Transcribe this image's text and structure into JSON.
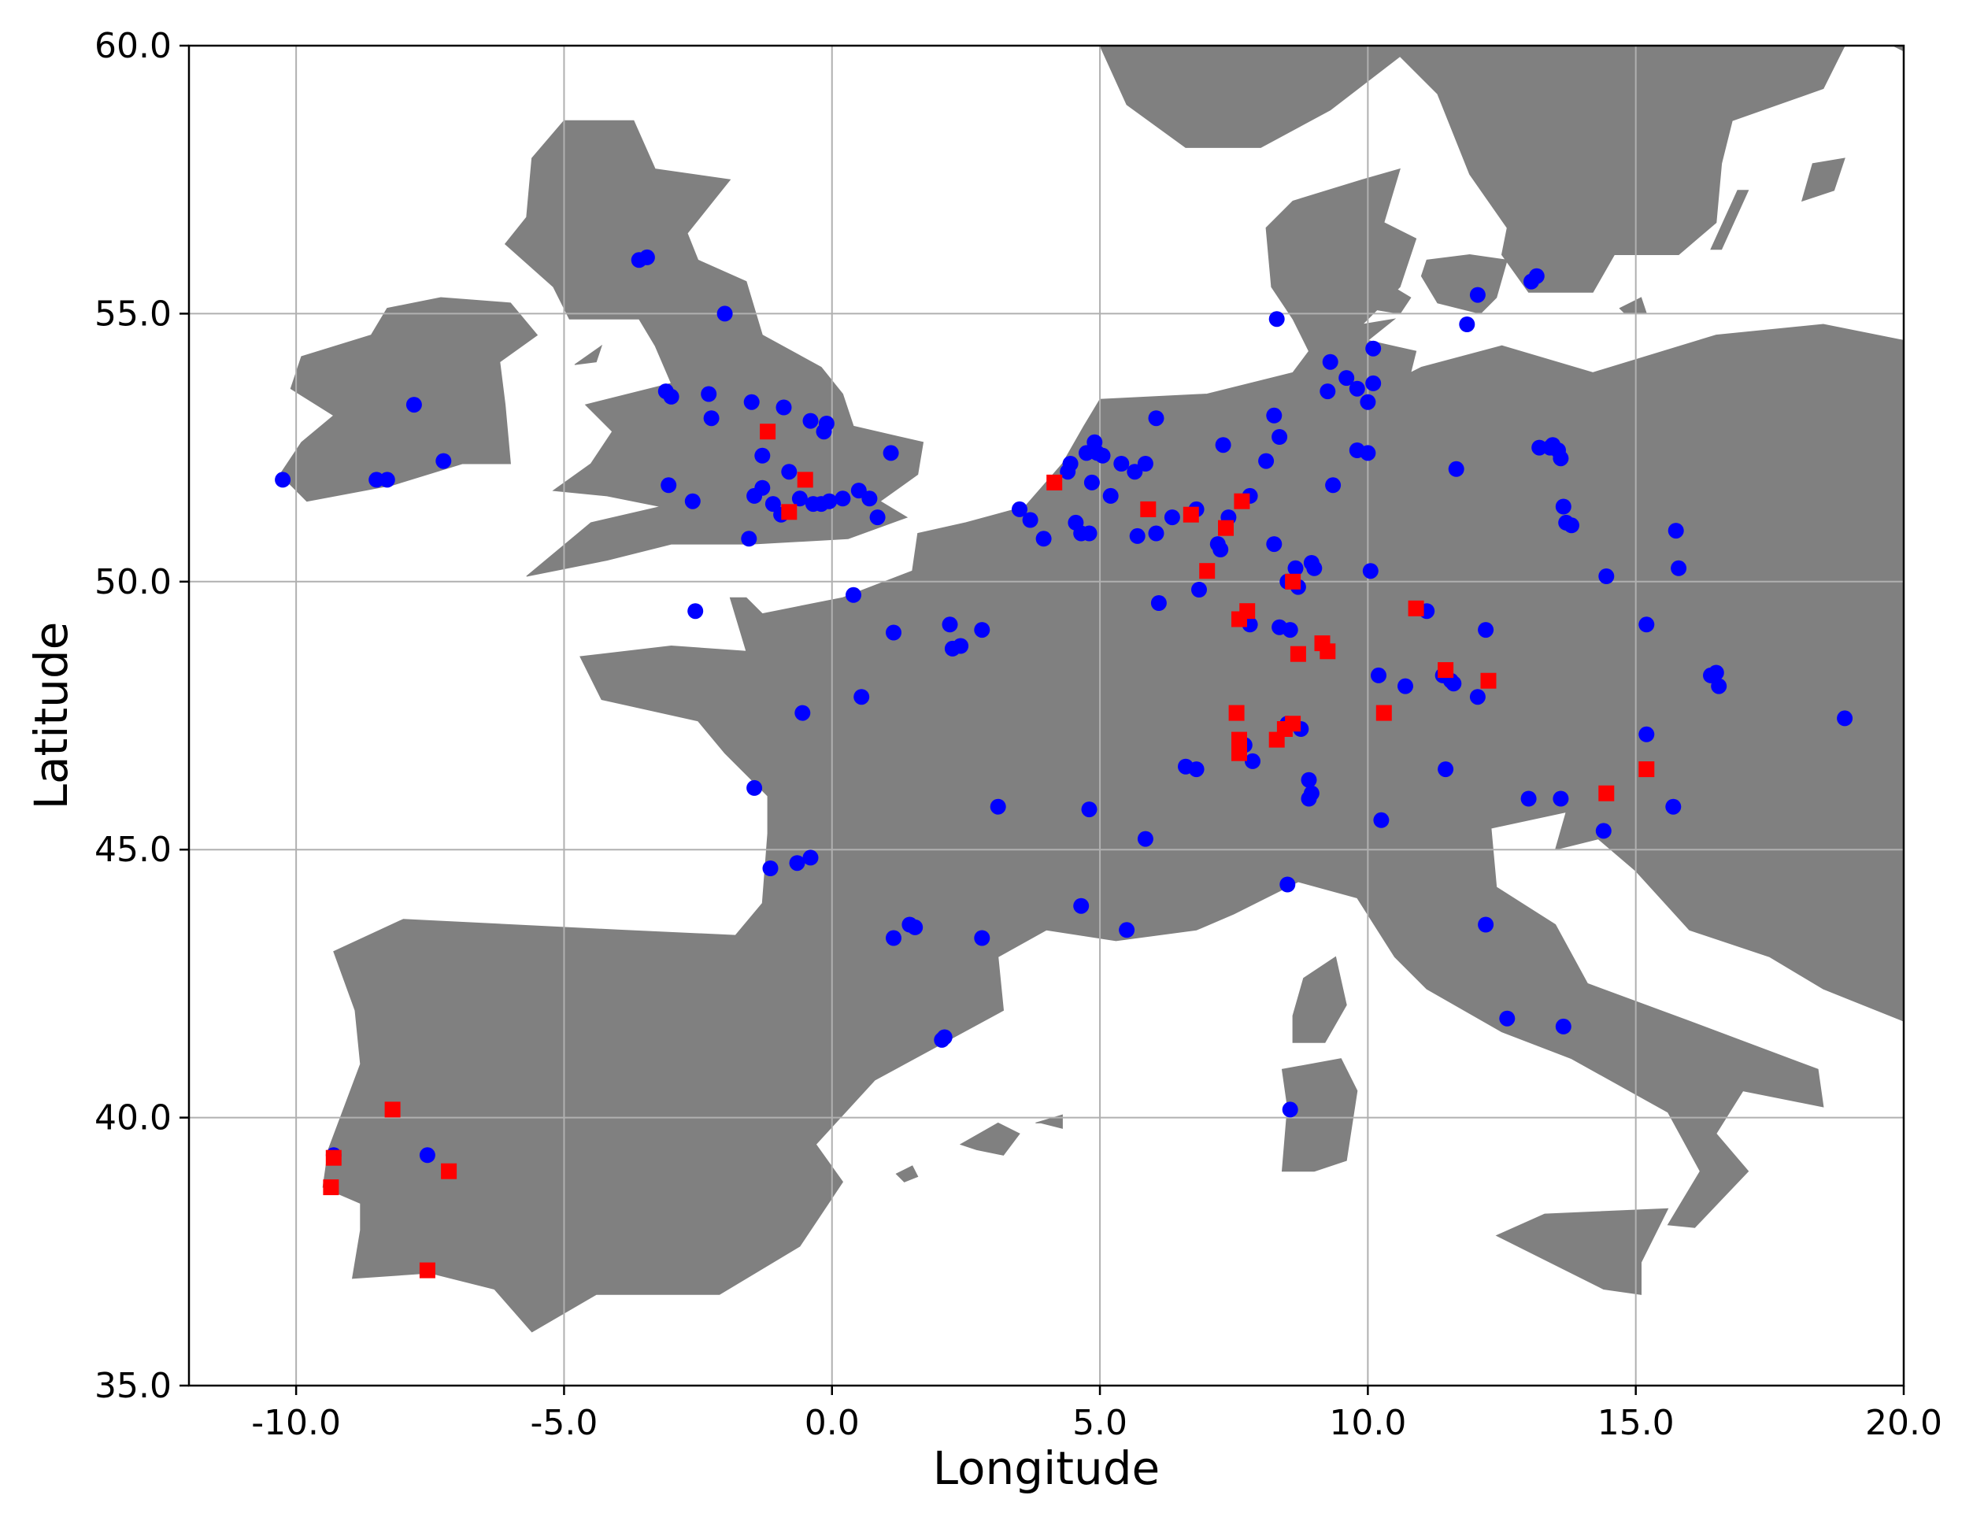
{
  "chart_data": {
    "type": "scatter",
    "title": "",
    "xlabel": "Longitude",
    "ylabel": "Latitude",
    "xlim": [
      -12.0,
      20.0
    ],
    "ylim": [
      35.0,
      60.0
    ],
    "grid": true,
    "x_ticks": [
      "-10.0",
      "-5.0",
      "0.0",
      "5.0",
      "10.0",
      "15.0",
      "20.0"
    ],
    "y_ticks": [
      "35.0",
      "40.0",
      "45.0",
      "50.0",
      "55.0",
      "60.0"
    ],
    "land_color": "#808080",
    "sea_color": "#ffffff",
    "series": [
      {
        "marker": "circle",
        "color": "#0000ff",
        "points": [
          [
            -10.25,
            51.9
          ],
          [
            -8.5,
            51.9
          ],
          [
            -8.3,
            51.9
          ],
          [
            -7.8,
            53.3
          ],
          [
            -7.25,
            52.25
          ],
          [
            -3.6,
            56.0
          ],
          [
            -3.45,
            56.05
          ],
          [
            -2.0,
            55.0
          ],
          [
            -3.1,
            53.55
          ],
          [
            -3.0,
            53.45
          ],
          [
            -2.3,
            53.5
          ],
          [
            -2.25,
            53.05
          ],
          [
            -1.5,
            53.35
          ],
          [
            -1.3,
            52.35
          ],
          [
            -0.9,
            53.25
          ],
          [
            -0.4,
            53.0
          ],
          [
            -0.1,
            52.95
          ],
          [
            -0.15,
            52.8
          ],
          [
            -3.05,
            51.8
          ],
          [
            -2.6,
            51.5
          ],
          [
            -1.45,
            51.6
          ],
          [
            -1.3,
            51.75
          ],
          [
            -1.1,
            51.45
          ],
          [
            -0.95,
            51.25
          ],
          [
            -0.8,
            52.05
          ],
          [
            -0.6,
            51.55
          ],
          [
            -0.35,
            51.45
          ],
          [
            -0.2,
            51.45
          ],
          [
            -0.05,
            51.5
          ],
          [
            0.2,
            51.55
          ],
          [
            0.5,
            51.7
          ],
          [
            0.7,
            51.55
          ],
          [
            0.85,
            51.2
          ],
          [
            1.1,
            52.4
          ],
          [
            -1.55,
            50.8
          ],
          [
            0.4,
            49.75
          ],
          [
            -2.55,
            49.45
          ],
          [
            1.15,
            49.05
          ],
          [
            2.2,
            49.2
          ],
          [
            2.4,
            48.8
          ],
          [
            2.25,
            48.75
          ],
          [
            2.8,
            49.1
          ],
          [
            3.5,
            51.35
          ],
          [
            3.7,
            51.15
          ],
          [
            3.95,
            50.8
          ],
          [
            4.4,
            52.05
          ],
          [
            4.45,
            52.2
          ],
          [
            4.55,
            51.1
          ],
          [
            4.65,
            50.9
          ],
          [
            4.8,
            50.9
          ],
          [
            4.85,
            51.85
          ],
          [
            4.75,
            52.4
          ],
          [
            4.9,
            52.6
          ],
          [
            4.95,
            52.4
          ],
          [
            5.05,
            52.35
          ],
          [
            5.2,
            51.6
          ],
          [
            5.4,
            52.2
          ],
          [
            5.65,
            52.05
          ],
          [
            5.85,
            52.2
          ],
          [
            5.7,
            50.85
          ],
          [
            6.05,
            50.9
          ],
          [
            6.35,
            51.2
          ],
          [
            6.8,
            51.35
          ],
          [
            6.05,
            53.05
          ],
          [
            7.2,
            50.7
          ],
          [
            7.25,
            50.6
          ],
          [
            7.3,
            52.55
          ],
          [
            7.4,
            51.2
          ],
          [
            7.8,
            51.6
          ],
          [
            7.8,
            49.2
          ],
          [
            8.1,
            52.25
          ],
          [
            8.25,
            53.1
          ],
          [
            8.35,
            52.7
          ],
          [
            8.25,
            50.7
          ],
          [
            8.5,
            50.0
          ],
          [
            8.65,
            50.25
          ],
          [
            8.7,
            49.9
          ],
          [
            8.95,
            50.35
          ],
          [
            9.0,
            50.25
          ],
          [
            8.35,
            49.15
          ],
          [
            8.55,
            49.1
          ],
          [
            6.85,
            49.85
          ],
          [
            6.1,
            49.6
          ],
          [
            7.7,
            46.95
          ],
          [
            7.85,
            46.65
          ],
          [
            8.5,
            47.35
          ],
          [
            8.75,
            47.25
          ],
          [
            6.6,
            46.55
          ],
          [
            6.8,
            46.5
          ],
          [
            5.85,
            45.2
          ],
          [
            8.95,
            46.05
          ],
          [
            8.9,
            46.3
          ],
          [
            8.9,
            45.95
          ],
          [
            8.5,
            44.35
          ],
          [
            4.8,
            45.75
          ],
          [
            4.65,
            43.95
          ],
          [
            5.5,
            43.5
          ],
          [
            3.1,
            45.8
          ],
          [
            2.8,
            43.35
          ],
          [
            1.55,
            43.55
          ],
          [
            1.45,
            43.6
          ],
          [
            1.15,
            43.35
          ],
          [
            0.55,
            47.85
          ],
          [
            -0.55,
            47.55
          ],
          [
            -1.45,
            46.15
          ],
          [
            -1.15,
            44.65
          ],
          [
            -0.65,
            44.75
          ],
          [
            -0.4,
            44.85
          ],
          [
            2.05,
            41.45
          ],
          [
            2.1,
            41.5
          ],
          [
            8.3,
            54.9
          ],
          [
            9.3,
            54.1
          ],
          [
            9.6,
            53.8
          ],
          [
            9.8,
            53.6
          ],
          [
            10.0,
            53.35
          ],
          [
            10.1,
            53.7
          ],
          [
            9.25,
            53.55
          ],
          [
            10.1,
            54.35
          ],
          [
            9.8,
            52.45
          ],
          [
            10.0,
            52.4
          ],
          [
            9.35,
            51.8
          ],
          [
            10.05,
            50.2
          ],
          [
            10.2,
            48.25
          ],
          [
            10.7,
            48.05
          ],
          [
            11.1,
            49.45
          ],
          [
            11.65,
            52.1
          ],
          [
            11.4,
            48.25
          ],
          [
            11.6,
            48.1
          ],
          [
            11.55,
            48.15
          ],
          [
            12.05,
            47.85
          ],
          [
            12.2,
            49.1
          ],
          [
            11.45,
            46.5
          ],
          [
            10.25,
            45.55
          ],
          [
            12.2,
            43.6
          ],
          [
            12.6,
            41.85
          ],
          [
            13.65,
            41.7
          ],
          [
            13.0,
            45.95
          ],
          [
            13.6,
            45.95
          ],
          [
            14.4,
            45.35
          ],
          [
            14.45,
            50.1
          ],
          [
            15.2,
            49.2
          ],
          [
            15.2,
            47.15
          ],
          [
            15.7,
            45.8
          ],
          [
            15.75,
            50.95
          ],
          [
            15.8,
            50.25
          ],
          [
            16.4,
            48.25
          ],
          [
            16.5,
            48.3
          ],
          [
            16.55,
            48.05
          ],
          [
            18.9,
            47.45
          ],
          [
            13.05,
            55.6
          ],
          [
            13.15,
            55.7
          ],
          [
            12.05,
            55.35
          ],
          [
            11.85,
            54.8
          ],
          [
            13.2,
            52.5
          ],
          [
            13.4,
            52.5
          ],
          [
            13.45,
            52.55
          ],
          [
            13.55,
            52.45
          ],
          [
            13.6,
            52.3
          ],
          [
            13.65,
            51.4
          ],
          [
            13.7,
            51.1
          ],
          [
            13.8,
            51.05
          ],
          [
            8.55,
            40.15
          ],
          [
            -7.55,
            39.3
          ],
          [
            -9.3,
            39.3
          ]
        ]
      },
      {
        "marker": "square",
        "color": "#ff0000",
        "points": [
          [
            -1.2,
            52.8
          ],
          [
            -0.5,
            51.9
          ],
          [
            -0.8,
            51.3
          ],
          [
            4.15,
            51.85
          ],
          [
            5.9,
            51.35
          ],
          [
            6.7,
            51.25
          ],
          [
            7.65,
            51.5
          ],
          [
            7.35,
            51.0
          ],
          [
            7.0,
            50.2
          ],
          [
            8.6,
            50.0
          ],
          [
            7.6,
            49.3
          ],
          [
            7.75,
            49.45
          ],
          [
            8.7,
            48.65
          ],
          [
            9.15,
            48.85
          ],
          [
            9.25,
            48.7
          ],
          [
            10.9,
            49.5
          ],
          [
            11.45,
            48.35
          ],
          [
            12.25,
            48.15
          ],
          [
            10.3,
            47.55
          ],
          [
            7.55,
            47.55
          ],
          [
            7.6,
            47.05
          ],
          [
            7.6,
            46.8
          ],
          [
            8.3,
            47.05
          ],
          [
            8.45,
            47.25
          ],
          [
            8.6,
            47.35
          ],
          [
            14.45,
            46.05
          ],
          [
            15.2,
            46.5
          ],
          [
            -8.2,
            40.15
          ],
          [
            -9.3,
            39.25
          ],
          [
            -9.35,
            38.7
          ],
          [
            -7.15,
            39.0
          ],
          [
            -7.55,
            37.15
          ]
        ]
      }
    ]
  }
}
